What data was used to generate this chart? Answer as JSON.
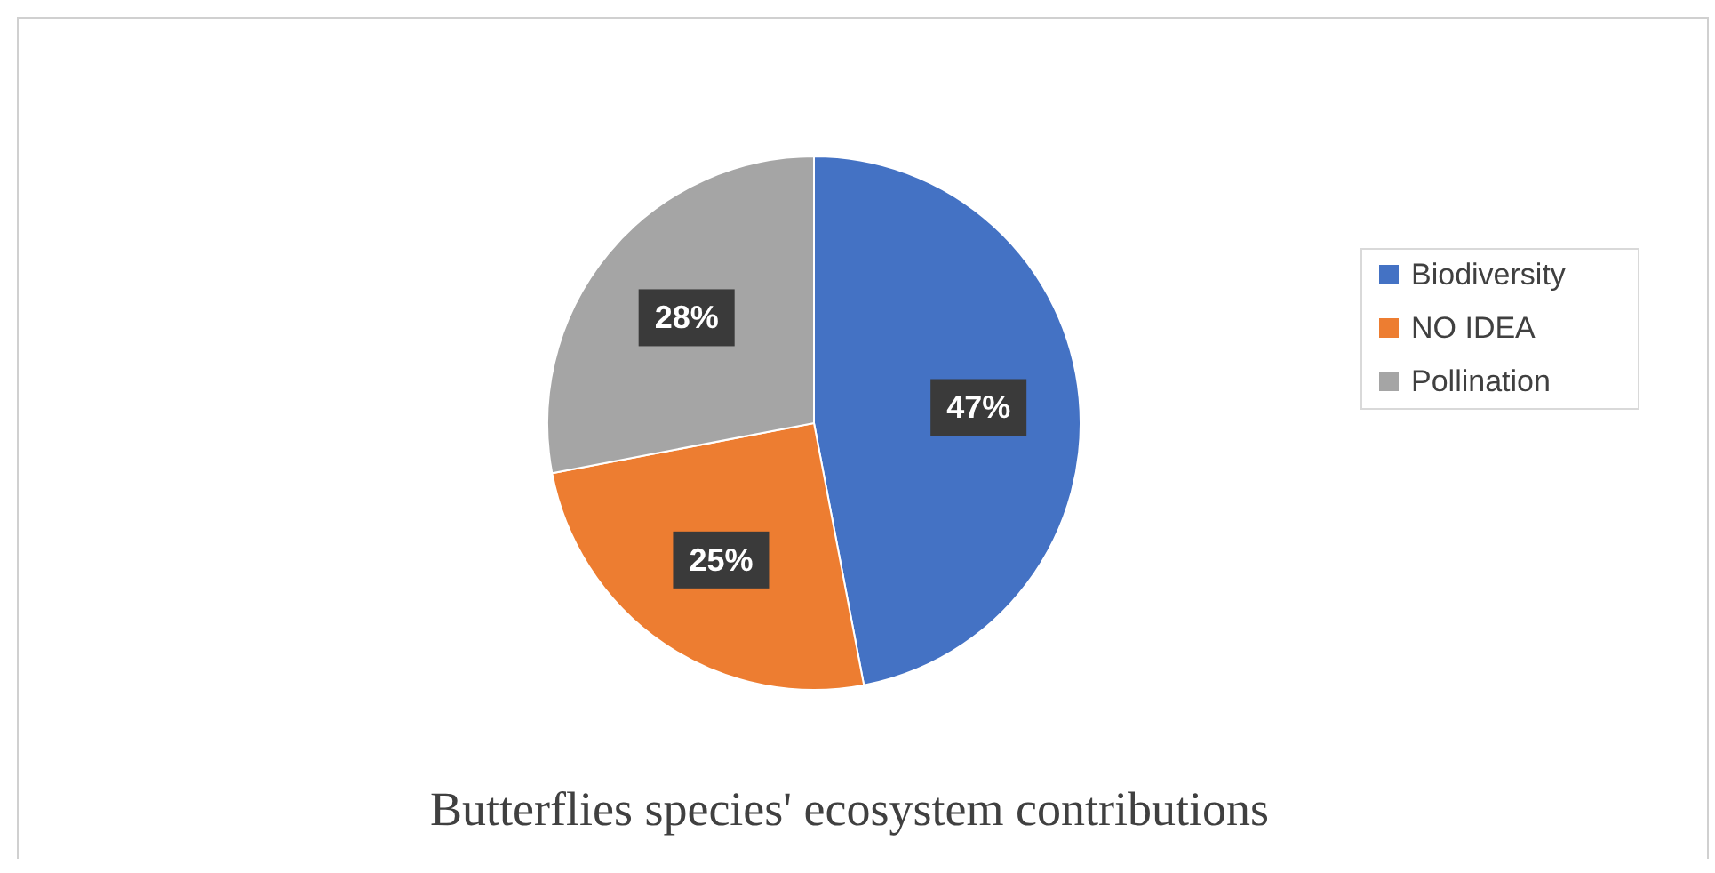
{
  "chart_data": {
    "type": "pie",
    "title": "Butterflies species' ecosystem contributions",
    "categories": [
      "Biodiversity",
      "NO IDEA",
      "Pollination"
    ],
    "values": [
      47,
      25,
      28
    ],
    "colors": [
      "#4472c4",
      "#ed7d31",
      "#a5a5a5"
    ],
    "value_labels": [
      "47%",
      "25%",
      "28%"
    ],
    "legend": "right"
  }
}
